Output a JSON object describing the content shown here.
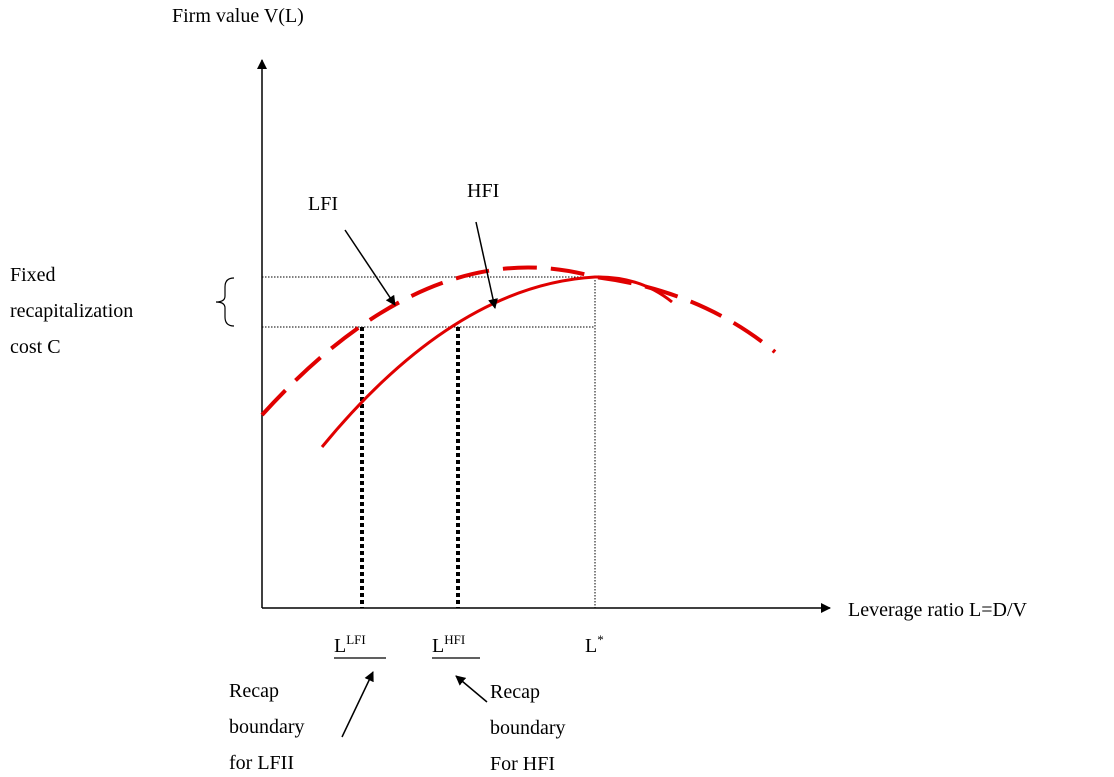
{
  "axes": {
    "y_label": "Firm value V(L)",
    "x_label": "Leverage ratio L=D/V"
  },
  "curves": {
    "lfi_label": "LFI",
    "hfi_label": "HFI",
    "color": "#e00000"
  },
  "cost_label": {
    "line1": "Fixed",
    "line2": "recapitalization",
    "line3": "cost C"
  },
  "ticks": {
    "lfi_base": "L",
    "lfi_sup": "LFI",
    "hfi_base": "L",
    "hfi_sup": "HFI",
    "star_base": "L",
    "star_sup": "*"
  },
  "notes": {
    "lfi": {
      "line1": "Recap",
      "line2": "boundary",
      "line3": "for LFII"
    },
    "hfi": {
      "line1": "Recap",
      "line2": "boundary",
      "line3": "For HFI"
    }
  }
}
